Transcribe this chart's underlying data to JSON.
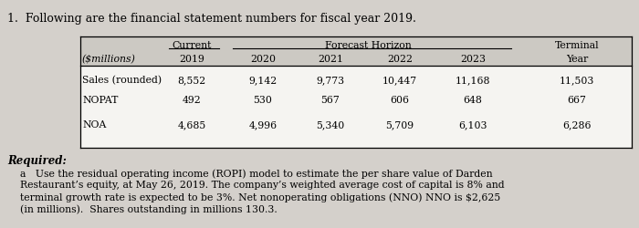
{
  "title": "1.  Following are the financial statement numbers for fiscal year 2019.",
  "header_row1_current": "Current",
  "header_row1_forecast": "Forecast Horizon",
  "header_row1_terminal": "Terminal",
  "header_row2": [
    "($millions)",
    "2019",
    "2020",
    "2021",
    "2022",
    "2023",
    "Year"
  ],
  "rows": [
    [
      "Sales (rounded)",
      "8,552",
      "9,142",
      "9,773",
      "10,447",
      "11,168",
      "11,503"
    ],
    [
      "NOPAT",
      "492",
      "530",
      "567",
      "606",
      "648",
      "667"
    ],
    [
      "NOA",
      "4,685",
      "4,996",
      "5,340",
      "5,709",
      "6,103",
      "6,286"
    ]
  ],
  "required_label": "Required:",
  "required_lines": [
    "a   Use the residual operating income (ROPI) model to estimate the per share value of Darden",
    "Restaurant’s equity, at May 26, 2019. The company’s weighted average cost of capital is 8% and",
    "terminal growth rate is expected to be 3%. Net nonoperating obligations (NNO) NNO is $2,625",
    "(in millions).  Shares outstanding in millions 130.3."
  ],
  "bg_color": "#d4d0cb",
  "table_bg_header": "#ccc9c3",
  "table_bg_body": "#f5f4f1",
  "font_color": "#000000"
}
